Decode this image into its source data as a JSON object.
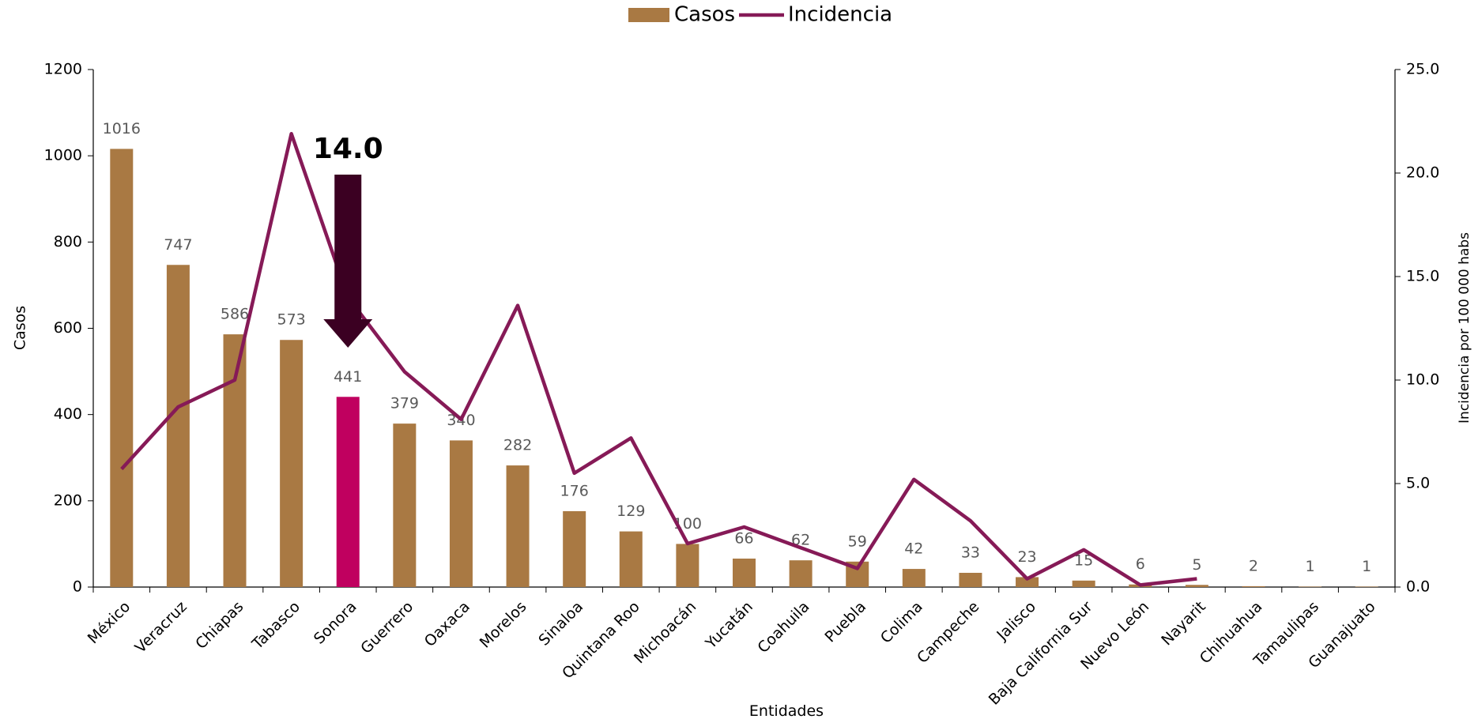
{
  "chart_data": {
    "type": "bar_line",
    "x_label": "Entidades",
    "y_label": "Casos",
    "y2_label": "Incidencia por 100 000 habs",
    "annotation": "14.0",
    "categories": [
      "México",
      "Veracruz",
      "Chiapas",
      "Tabasco",
      "Sonora",
      "Guerrero",
      "Oaxaca",
      "Morelos",
      "Sinaloa",
      "Quintana Roo",
      "Michoacán",
      "Yucatán",
      "Coahuila",
      "Puebla",
      "Colima",
      "Campeche",
      "Jalisco",
      "Baja California Sur",
      "Nuevo León",
      "Nayarit",
      "Chihuahua",
      "Tamaulipas",
      "Guanajuato"
    ],
    "series": [
      {
        "name": "Casos",
        "type": "bar",
        "color": "#a97943",
        "highlight_color": "#c0005f",
        "highlight_index": 4,
        "values": [
          1016,
          747,
          586,
          573,
          441,
          379,
          340,
          282,
          176,
          129,
          100,
          66,
          62,
          59,
          42,
          33,
          23,
          15,
          6,
          5,
          2,
          1,
          1
        ]
      },
      {
        "name": "Incidencia",
        "type": "line",
        "axis": "y2",
        "color": "#861a57",
        "values": [
          5.7,
          8.7,
          10.0,
          21.9,
          14.0,
          10.4,
          8.1,
          13.6,
          5.5,
          7.2,
          2.1,
          2.9,
          1.9,
          0.9,
          5.2,
          3.2,
          0.4,
          1.8,
          0.1,
          0.4,
          null,
          null,
          null
        ]
      }
    ],
    "ylim": [
      0,
      1200
    ],
    "yticks": [
      0,
      200,
      400,
      600,
      800,
      1000,
      1200
    ],
    "y2lim": [
      0,
      25
    ],
    "y2ticks": [
      {
        "value": 0,
        "label": "0.0"
      },
      {
        "value": 5,
        "label": "5.0"
      },
      {
        "value": 10,
        "label": "10.0"
      },
      {
        "value": 15,
        "label": "15.0"
      },
      {
        "value": 20,
        "label": "20.0"
      },
      {
        "value": 25,
        "label": "25.0"
      }
    ],
    "legend": "top"
  }
}
